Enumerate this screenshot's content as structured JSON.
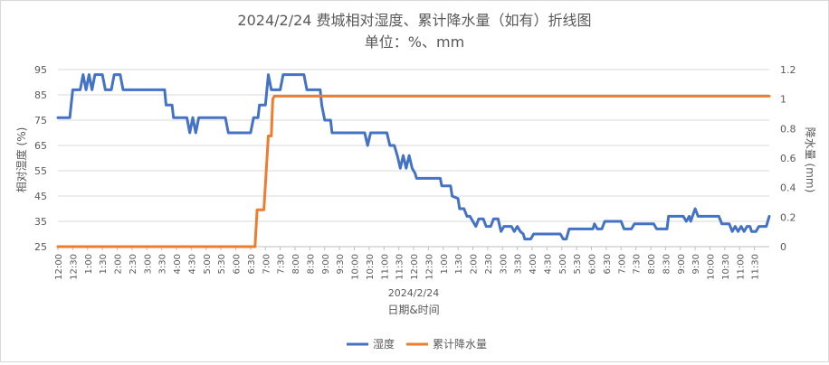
{
  "chart_data": {
    "type": "line",
    "title": "2024/2/24 费城相对湿度、累计降水量（如有）折线图",
    "subtitle": "单位：%、mm",
    "x_date_label": "2024/2/24",
    "xlabel": "日期&时间",
    "ylabel_left": "相对湿度 (%)",
    "ylabel_right": "降水量 (mm)",
    "y_left_range": [
      25,
      95
    ],
    "y_left_ticks": [
      "25",
      "35",
      "45",
      "55",
      "65",
      "75",
      "85",
      "95"
    ],
    "y_right_range": [
      0,
      1.2
    ],
    "y_right_ticks": [
      "0",
      "0.2",
      "0.4",
      "0.6",
      "0.8",
      "1",
      "1.2"
    ],
    "x_range_hours": [
      12,
      36
    ],
    "x_tick_labels": [
      "12:00",
      "12:30",
      "1:00",
      "1:30",
      "2:00",
      "2:30",
      "3:00",
      "3:30",
      "4:00",
      "4:30",
      "5:00",
      "5:30",
      "6:00",
      "6:30",
      "7:00",
      "7:30",
      "8:00",
      "8:30",
      "9:00",
      "9:30",
      "10:00",
      "10:30",
      "11:00",
      "11:30",
      "12:00",
      "12:30",
      "1:00",
      "1:30",
      "2:00",
      "2:30",
      "3:00",
      "3:30",
      "4:00",
      "4:30",
      "5:00",
      "5:30",
      "6:00",
      "6:30",
      "7:00",
      "7:30",
      "8:00",
      "8:30",
      "9:00",
      "9:30",
      "10:00",
      "10:30",
      "11:00",
      "11:30"
    ],
    "grid": "horizontal",
    "legend_position": "bottom",
    "series": [
      {
        "name": "湿度",
        "axis": "left",
        "color": "#4472C4",
        "points": [
          [
            12.0,
            76
          ],
          [
            12.4,
            76
          ],
          [
            12.5,
            87
          ],
          [
            12.75,
            87
          ],
          [
            12.85,
            93
          ],
          [
            12.95,
            87
          ],
          [
            13.05,
            93
          ],
          [
            13.15,
            87
          ],
          [
            13.25,
            93
          ],
          [
            13.5,
            93
          ],
          [
            13.6,
            87
          ],
          [
            13.8,
            87
          ],
          [
            13.9,
            93
          ],
          [
            14.1,
            93
          ],
          [
            14.2,
            87
          ],
          [
            15.6,
            87
          ],
          [
            15.65,
            81
          ],
          [
            15.85,
            81
          ],
          [
            15.9,
            76
          ],
          [
            16.35,
            76
          ],
          [
            16.45,
            70
          ],
          [
            16.55,
            76
          ],
          [
            16.65,
            70
          ],
          [
            16.75,
            76
          ],
          [
            17.65,
            76
          ],
          [
            17.75,
            70
          ],
          [
            18.5,
            70
          ],
          [
            18.6,
            76
          ],
          [
            18.75,
            76
          ],
          [
            18.8,
            81
          ],
          [
            19.0,
            81
          ],
          [
            19.1,
            93
          ],
          [
            19.2,
            87
          ],
          [
            19.5,
            87
          ],
          [
            19.6,
            93
          ],
          [
            20.3,
            93
          ],
          [
            20.4,
            87
          ],
          [
            20.85,
            87
          ],
          [
            20.9,
            81
          ],
          [
            21.0,
            75
          ],
          [
            21.2,
            75
          ],
          [
            21.25,
            70
          ],
          [
            22.35,
            70
          ],
          [
            22.45,
            65
          ],
          [
            22.55,
            70
          ],
          [
            23.1,
            70
          ],
          [
            23.2,
            65
          ],
          [
            23.35,
            65
          ],
          [
            23.45,
            61
          ],
          [
            23.55,
            56
          ],
          [
            23.65,
            61
          ],
          [
            23.75,
            56
          ],
          [
            23.85,
            61
          ],
          [
            23.95,
            56
          ],
          [
            24.05,
            54
          ],
          [
            24.1,
            52
          ],
          [
            24.9,
            52
          ],
          [
            24.95,
            49
          ],
          [
            25.25,
            49
          ],
          [
            25.3,
            45
          ],
          [
            25.5,
            44
          ],
          [
            25.55,
            40
          ],
          [
            25.7,
            40
          ],
          [
            25.8,
            37
          ],
          [
            25.9,
            37
          ],
          [
            26.0,
            35
          ],
          [
            26.1,
            33
          ],
          [
            26.2,
            36
          ],
          [
            26.35,
            36
          ],
          [
            26.45,
            33
          ],
          [
            26.6,
            33
          ],
          [
            26.7,
            36
          ],
          [
            26.85,
            36
          ],
          [
            26.95,
            31
          ],
          [
            27.05,
            33
          ],
          [
            27.3,
            33
          ],
          [
            27.4,
            31
          ],
          [
            27.5,
            33
          ],
          [
            27.6,
            31
          ],
          [
            27.7,
            30
          ],
          [
            27.75,
            28
          ],
          [
            27.95,
            28
          ],
          [
            28.05,
            30
          ],
          [
            28.95,
            30
          ],
          [
            29.05,
            28
          ],
          [
            29.15,
            28
          ],
          [
            29.25,
            32
          ],
          [
            30.05,
            32
          ],
          [
            30.1,
            34
          ],
          [
            30.2,
            32
          ],
          [
            30.35,
            32
          ],
          [
            30.45,
            35
          ],
          [
            31.0,
            35
          ],
          [
            31.1,
            32
          ],
          [
            31.35,
            32
          ],
          [
            31.45,
            34
          ],
          [
            32.1,
            34
          ],
          [
            32.2,
            32
          ],
          [
            32.55,
            32
          ],
          [
            32.6,
            37
          ],
          [
            33.1,
            37
          ],
          [
            33.2,
            35
          ],
          [
            33.3,
            37
          ],
          [
            33.35,
            35
          ],
          [
            33.5,
            40
          ],
          [
            33.6,
            37
          ],
          [
            34.3,
            37
          ],
          [
            34.4,
            34
          ],
          [
            34.65,
            34
          ],
          [
            34.75,
            31
          ],
          [
            34.85,
            33
          ],
          [
            34.95,
            31
          ],
          [
            35.05,
            33
          ],
          [
            35.15,
            31
          ],
          [
            35.25,
            33
          ],
          [
            35.35,
            33
          ],
          [
            35.4,
            31
          ],
          [
            35.55,
            31
          ],
          [
            35.65,
            33
          ],
          [
            35.9,
            33
          ],
          [
            36.0,
            37
          ]
        ]
      },
      {
        "name": "累计降水量",
        "axis": "right",
        "color": "#ED7D31",
        "points": [
          [
            12.0,
            0
          ],
          [
            18.65,
            0
          ],
          [
            18.72,
            0.25
          ],
          [
            18.95,
            0.25
          ],
          [
            19.1,
            0.75
          ],
          [
            19.2,
            0.75
          ],
          [
            19.25,
            1
          ],
          [
            19.3,
            1.02
          ],
          [
            36.0,
            1.02
          ]
        ]
      }
    ]
  }
}
